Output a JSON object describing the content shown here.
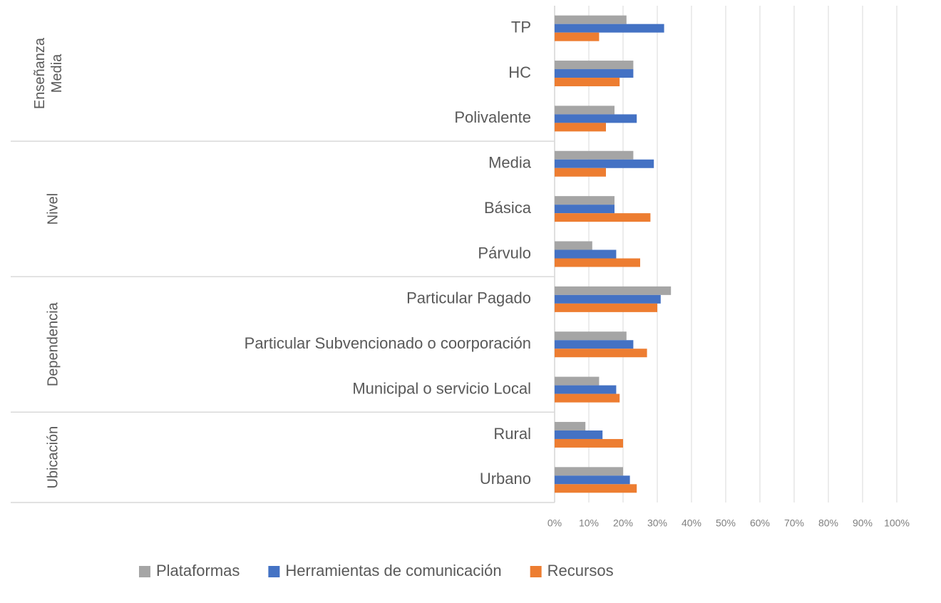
{
  "chart_data": {
    "type": "bar",
    "orientation": "horizontal",
    "groups": [
      {
        "label": "Enseñanza Media",
        "categories": [
          "TP",
          "HC",
          "Polivalente"
        ]
      },
      {
        "label": "Nivel",
        "categories": [
          "Media",
          "Básica",
          "Párvulo"
        ]
      },
      {
        "label": "Dependencia",
        "categories": [
          "Particular Pagado",
          "Particular Subvencionado o coorporación",
          "Municipal o servicio Local"
        ]
      },
      {
        "label": "Ubicación",
        "categories": [
          "Rural",
          "Urbano"
        ]
      }
    ],
    "series": [
      {
        "name": "Plataformas",
        "color": "#a5a5a5",
        "values": [
          21,
          23,
          17.5,
          23,
          17.5,
          11,
          34,
          21,
          13,
          9,
          20
        ]
      },
      {
        "name": "Herramientas de comunicación",
        "color": "#4472c4",
        "values": [
          32,
          23,
          24,
          29,
          17.5,
          18,
          31,
          23,
          18,
          14,
          22
        ]
      },
      {
        "name": "Recursos",
        "color": "#ed7d31",
        "values": [
          13,
          19,
          15,
          15,
          28,
          25,
          30,
          27,
          19,
          20,
          24
        ]
      }
    ],
    "xlim": [
      0,
      100
    ],
    "xticks": [
      {
        "value": 0,
        "label": "0%"
      },
      {
        "value": 10,
        "label": "10%"
      },
      {
        "value": 20,
        "label": "20%"
      },
      {
        "value": 30,
        "label": "30%"
      },
      {
        "value": 40,
        "label": "40%"
      },
      {
        "value": 50,
        "label": "50%"
      },
      {
        "value": 60,
        "label": "60%"
      },
      {
        "value": 70,
        "label": "70%"
      },
      {
        "value": 80,
        "label": "80%"
      },
      {
        "value": 90,
        "label": "90%"
      },
      {
        "value": 100,
        "label": "100%"
      }
    ],
    "grid": true,
    "legend": "bottom"
  }
}
